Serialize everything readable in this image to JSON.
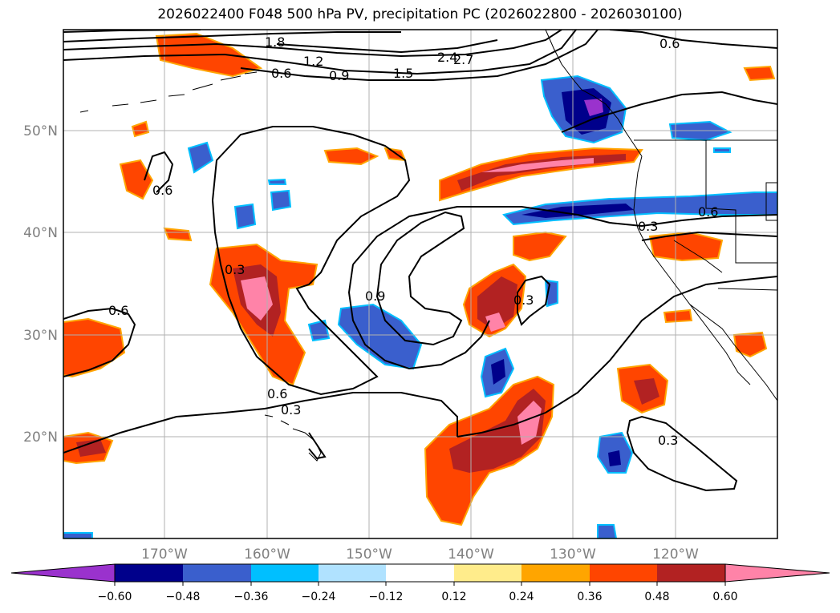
{
  "title": "2026022400 F048 500 hPa PV, precipitation PC (2026022800 - 2026030100)",
  "map": {
    "lat_labels": [
      "50°N",
      "40°N",
      "30°N",
      "20°N"
    ],
    "lon_labels": [
      "170°W",
      "160°W",
      "150°W",
      "140°W",
      "130°W",
      "120°W"
    ],
    "contour_labels": [
      "1.8",
      "1.2",
      "2.4",
      "2.7",
      "0.6",
      "0.9",
      "1.5",
      "0.6",
      "0.6",
      "0.6",
      "0.3",
      "0.6",
      "0.9",
      "0.3",
      "0.3",
      "0.6",
      "0.3",
      "0.3"
    ]
  },
  "colorbar": {
    "ticks": [
      "−0.60",
      "−0.48",
      "−0.36",
      "−0.24",
      "−0.12",
      "0.12",
      "0.24",
      "0.36",
      "0.48",
      "0.60"
    ],
    "colors": [
      "#9a32cd",
      "#00008b",
      "#3a5fcd",
      "#00bfff",
      "#b0e2ff",
      "#ffffff",
      "#ffec8b",
      "#ffa500",
      "#ff4500",
      "#b22222",
      "#ff83a8",
      "#ff83a8"
    ]
  }
}
